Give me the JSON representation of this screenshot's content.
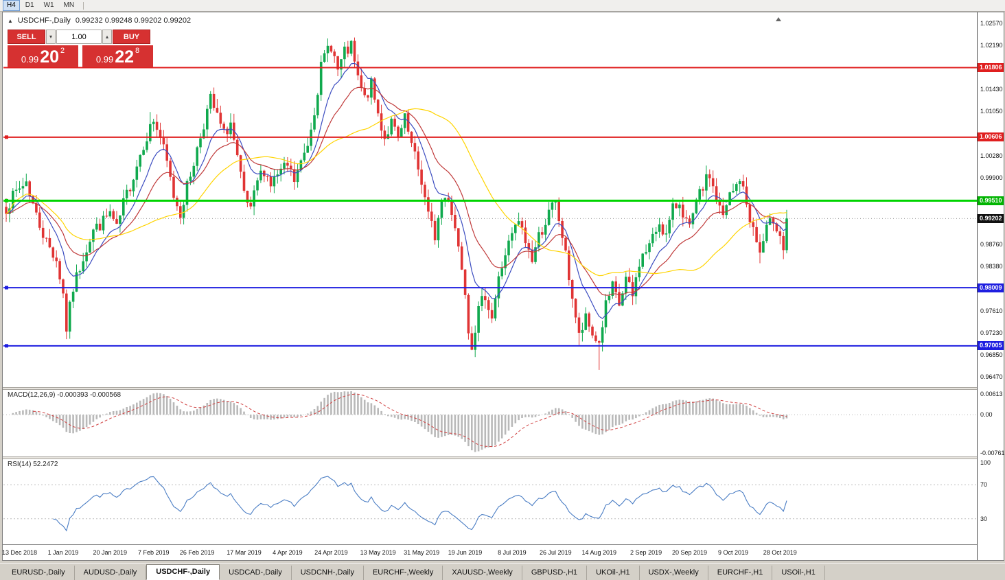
{
  "toolbar": {
    "timeframes": [
      {
        "label": "H4",
        "active": true
      },
      {
        "label": "D1",
        "active": false
      },
      {
        "label": "W1",
        "active": false
      },
      {
        "label": "MN",
        "active": false
      }
    ]
  },
  "chart": {
    "collapse_arrow": "▲",
    "symbol_label": "USDCHF-,Daily",
    "ohlc_line": "0.99232 0.99248 0.99202 0.99202",
    "trade_panel": {
      "sell_label": "SELL",
      "buy_label": "BUY",
      "volume": "1.00",
      "spin_down": "▾",
      "spin_up": "▴",
      "sell_price": {
        "small": "0.99",
        "big": "20",
        "sup": "2"
      },
      "buy_price": {
        "small": "0.99",
        "big": "22",
        "sup": "8"
      }
    }
  },
  "chart_data": {
    "type": "candlestick",
    "symbol": "USDCHF",
    "timeframe": "Daily",
    "last_ohlc": {
      "open": 0.99232,
      "high": 0.99248,
      "low": 0.99202,
      "close": 0.99202
    },
    "price_range": {
      "top": 1.0257,
      "bottom": 0.9647
    },
    "y_axis_ticks": [
      "1.02570",
      "1.02190",
      "1.01430",
      "1.01050",
      "1.00280",
      "0.99900",
      "0.98760",
      "0.98380",
      "0.97610",
      "0.97230",
      "0.96850",
      "0.96470"
    ],
    "price_levels": [
      {
        "label": "1.01806",
        "value": 1.01806,
        "bg": "#e01f1f",
        "line": "#e01f1f",
        "width": 2,
        "handle": false
      },
      {
        "label": "1.00606",
        "value": 1.00606,
        "bg": "#e01f1f",
        "line": "#e01f1f",
        "width": 2,
        "handle": true
      },
      {
        "label": "0.99510",
        "value": 0.9951,
        "bg": "#00b400",
        "line": "#00d400",
        "width": 3,
        "handle": true
      },
      {
        "label": "0.98009",
        "value": 0.98009,
        "bg": "#1e1ee0",
        "line": "#1e1ee0",
        "width": 2,
        "handle": true
      },
      {
        "label": "0.97005",
        "value": 0.97005,
        "bg": "#1e1ee0",
        "line": "#1e1ee0",
        "width": 2,
        "handle": true
      }
    ],
    "current_price": {
      "label": "0.99202",
      "value": 0.99202,
      "bg": "#111111"
    },
    "x_ticks": [
      {
        "label": "13 Dec 2018",
        "i": 4
      },
      {
        "label": "1 Jan 2019",
        "i": 17
      },
      {
        "label": "20 Jan 2019",
        "i": 31
      },
      {
        "label": "7 Feb 2019",
        "i": 44
      },
      {
        "label": "26 Feb 2019",
        "i": 57
      },
      {
        "label": "17 Mar 2019",
        "i": 71
      },
      {
        "label": "4 Apr 2019",
        "i": 84
      },
      {
        "label": "24 Apr 2019",
        "i": 97
      },
      {
        "label": "13 May 2019",
        "i": 111
      },
      {
        "label": "31 May 2019",
        "i": 124
      },
      {
        "label": "19 Jun 2019",
        "i": 137
      },
      {
        "label": "8 Jul 2019",
        "i": 151
      },
      {
        "label": "26 Jul 2019",
        "i": 164
      },
      {
        "label": "14 Aug 2019",
        "i": 177
      },
      {
        "label": "2 Sep 2019",
        "i": 191
      },
      {
        "label": "9 Oct 2019",
        "i": 217
      },
      {
        "label": "20 Sep 2019",
        "i": 204
      },
      {
        "label": "28 Oct 2019",
        "i": 231
      }
    ],
    "candles_n": 234,
    "spacing": 4.88,
    "noise": 0.0012,
    "range_noise": 0.0016,
    "seed": 7,
    "close_keyframes": [
      [
        0,
        0.994
      ],
      [
        3,
        0.9965
      ],
      [
        6,
        0.9985
      ],
      [
        9,
        0.9925
      ],
      [
        12,
        0.988
      ],
      [
        15,
        0.985
      ],
      [
        17,
        0.979
      ],
      [
        18,
        0.973
      ],
      [
        20,
        0.98
      ],
      [
        23,
        0.9855
      ],
      [
        26,
        0.99
      ],
      [
        29,
        0.9915
      ],
      [
        31,
        0.993
      ],
      [
        33,
        0.99
      ],
      [
        35,
        0.9945
      ],
      [
        38,
        0.9995
      ],
      [
        41,
        1.005
      ],
      [
        44,
        1.009
      ],
      [
        46,
        1.006
      ],
      [
        48,
        1.0015
      ],
      [
        50,
        0.996
      ],
      [
        52,
        0.993
      ],
      [
        54,
        0.9975
      ],
      [
        57,
        1.004
      ],
      [
        59,
        1.0085
      ],
      [
        61,
        1.0125
      ],
      [
        63,
        1.0095
      ],
      [
        65,
        1.0065
      ],
      [
        67,
        1.0085
      ],
      [
        69,
        1.002
      ],
      [
        71,
        0.996
      ],
      [
        73,
        0.993
      ],
      [
        75,
        0.9985
      ],
      [
        77,
        1.0005
      ],
      [
        79,
        0.998
      ],
      [
        81,
        0.9995
      ],
      [
        84,
        1.001
      ],
      [
        86,
        0.9985
      ],
      [
        88,
        1.0015
      ],
      [
        90,
        1.005
      ],
      [
        92,
        1.011
      ],
      [
        94,
        1.018
      ],
      [
        96,
        1.0215
      ],
      [
        97,
        1.022
      ],
      [
        99,
        1.0175
      ],
      [
        101,
        1.0205
      ],
      [
        103,
        1.0215
      ],
      [
        105,
        1.016
      ],
      [
        107,
        1.0125
      ],
      [
        109,
        1.015
      ],
      [
        111,
        1.01
      ],
      [
        113,
        1.006
      ],
      [
        115,
        1.0085
      ],
      [
        117,
        1.0055
      ],
      [
        119,
        1.009
      ],
      [
        121,
        1.0045
      ],
      [
        124,
        0.9985
      ],
      [
        126,
        0.9925
      ],
      [
        128,
        0.989
      ],
      [
        130,
        0.995
      ],
      [
        132,
        0.996
      ],
      [
        134,
        0.9905
      ],
      [
        136,
        0.984
      ],
      [
        137,
        0.98
      ],
      [
        138,
        0.973
      ],
      [
        139,
        0.9705
      ],
      [
        141,
        0.976
      ],
      [
        143,
        0.979
      ],
      [
        145,
        0.975
      ],
      [
        147,
        0.9815
      ],
      [
        149,
        0.986
      ],
      [
        151,
        0.989
      ],
      [
        153,
        0.9915
      ],
      [
        155,
        0.988
      ],
      [
        157,
        0.985
      ],
      [
        159,
        0.989
      ],
      [
        161,
        0.9915
      ],
      [
        163,
        0.994
      ],
      [
        164,
        0.9945
      ],
      [
        166,
        0.989
      ],
      [
        168,
        0.982
      ],
      [
        170,
        0.975
      ],
      [
        171,
        0.9715
      ],
      [
        173,
        0.9745
      ],
      [
        175,
        0.972
      ],
      [
        177,
        0.9705
      ],
      [
        179,
        0.977
      ],
      [
        181,
        0.98
      ],
      [
        183,
        0.977
      ],
      [
        185,
        0.9815
      ],
      [
        187,
        0.9785
      ],
      [
        189,
        0.9845
      ],
      [
        191,
        0.9865
      ],
      [
        193,
        0.9885
      ],
      [
        195,
        0.9915
      ],
      [
        197,
        0.989
      ],
      [
        199,
        0.9935
      ],
      [
        201,
        0.995
      ],
      [
        203,
        0.9915
      ],
      [
        204,
        0.99
      ],
      [
        206,
        0.9945
      ],
      [
        208,
        0.9975
      ],
      [
        210,
        0.9995
      ],
      [
        212,
        0.9955
      ],
      [
        214,
        0.992
      ],
      [
        216,
        0.996
      ],
      [
        217,
        0.9965
      ],
      [
        219,
        0.999
      ],
      [
        221,
        0.9945
      ],
      [
        223,
        0.99
      ],
      [
        225,
        0.986
      ],
      [
        227,
        0.99
      ],
      [
        229,
        0.992
      ],
      [
        231,
        0.9895
      ],
      [
        232,
        0.9865
      ],
      [
        233,
        0.99202
      ]
    ],
    "extremes": {
      "18": {
        "low": 0.9712
      },
      "43": {
        "high": 1.0104
      },
      "61": {
        "high": 1.014
      },
      "96": {
        "high": 1.0231
      },
      "103": {
        "high": 1.0228
      },
      "128": {
        "low": 0.9875
      },
      "139": {
        "low": 0.9693
      },
      "164": {
        "high": 0.9952
      },
      "171": {
        "low": 0.97
      },
      "177": {
        "low": 0.9659
      },
      "210": {
        "high": 1.0005
      },
      "225": {
        "low": 0.9843
      },
      "232": {
        "low": 0.985
      }
    },
    "moving_averages": [
      {
        "period": 10,
        "type": "ema",
        "color": "#3b4cc0"
      },
      {
        "period": 21,
        "type": "ema",
        "color": "#c03a3a"
      },
      {
        "period": 40,
        "type": "sma",
        "color": "#ffd400"
      }
    ],
    "macd": {
      "label": "MACD(12,26,9) -0.000393 -0.000568",
      "fast": 12,
      "slow": 26,
      "signal": 9,
      "axis": [
        "0.00613",
        "0.00",
        "-0.00761"
      ]
    },
    "rsi": {
      "label": "RSI(14) 52.2472",
      "period": 14,
      "levels": [
        70,
        30
      ],
      "axis": [
        "100",
        "70",
        "30"
      ]
    },
    "colors": {
      "bull": "#10a94e",
      "bear": "#e03434",
      "macd_hist": "#b9b9b9",
      "macd_signal": "#d04040",
      "rsi": "#4a7dc4"
    }
  },
  "tabs": [
    {
      "label": "EURUSD-,Daily",
      "active": false
    },
    {
      "label": "AUDUSD-,Daily",
      "active": false
    },
    {
      "label": "USDCHF-,Daily",
      "active": true
    },
    {
      "label": "USDCAD-,Daily",
      "active": false
    },
    {
      "label": "USDCNH-,Daily",
      "active": false
    },
    {
      "label": "EURCHF-,Weekly",
      "active": false
    },
    {
      "label": "XAUUSD-,Weekly",
      "active": false
    },
    {
      "label": "GBPUSD-,H1",
      "active": false
    },
    {
      "label": "UKOil-,H1",
      "active": false
    },
    {
      "label": "USDX-,Weekly",
      "active": false
    },
    {
      "label": "EURCHF-,H1",
      "active": false
    },
    {
      "label": "USOil-,H1",
      "active": false
    }
  ]
}
